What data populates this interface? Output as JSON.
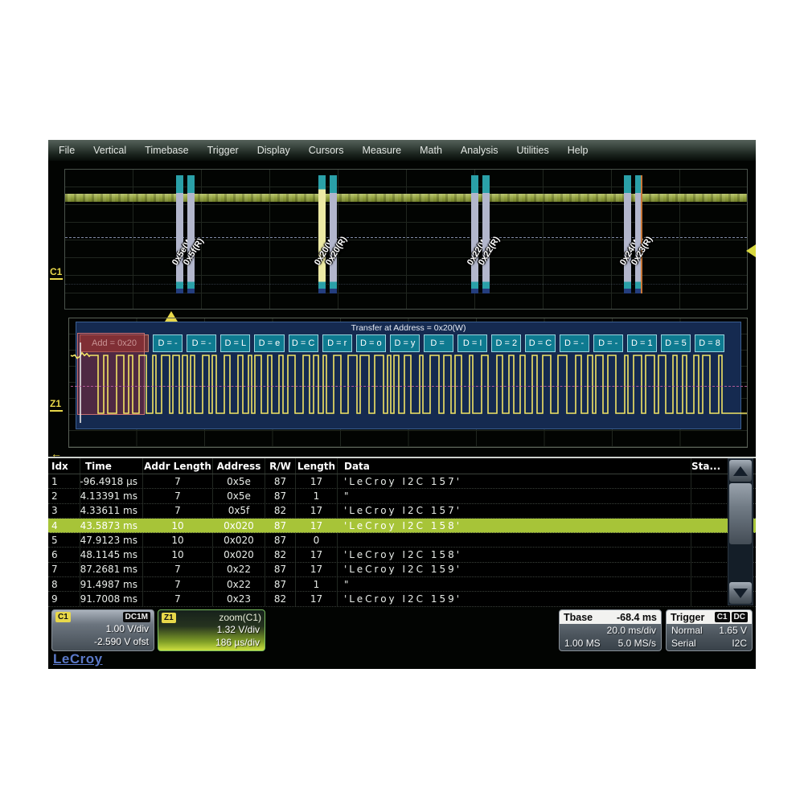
{
  "menu": {
    "items": [
      "File",
      "Vertical",
      "Timebase",
      "Trigger",
      "Display",
      "Cursors",
      "Measure",
      "Math",
      "Analysis",
      "Utilities",
      "Help"
    ]
  },
  "top_trace": {
    "channel_label": "C1",
    "bursts": [
      {
        "labels": [
          "0x5e(W)",
          "0x5f(R)"
        ]
      },
      {
        "labels": [
          "0x20(W)",
          "0x20(R)"
        ]
      },
      {
        "labels": [
          "0x22(W)",
          "0x22(R)"
        ]
      },
      {
        "labels": [
          "0x24(W)",
          "0x23(R)"
        ]
      }
    ]
  },
  "zoom_trace": {
    "channel_label": "Z1",
    "banner": "Transfer at Address = 0x20(W)",
    "address_box": "Add = 0x20",
    "data_prefix": "D = ",
    "data_values": [
      "-",
      "-",
      "L",
      "e",
      "C",
      "r",
      "o",
      "y",
      "",
      "I",
      "2",
      "C",
      "-",
      "-",
      "1",
      "5",
      "8"
    ]
  },
  "table": {
    "headers": {
      "idx": "Idx",
      "time": "Time",
      "addr_length": "Addr Length",
      "address": "Address",
      "rw": "R/W",
      "length": "Length",
      "data": "Data",
      "status": "Sta..."
    },
    "rows": [
      {
        "idx": "1",
        "time": "-96.4918 µs",
        "addr_length": "7",
        "address": "0x5e",
        "rw": "87",
        "length": "17",
        "data": "'LeCroy I2C 157'"
      },
      {
        "idx": "2",
        "time": "4.13391 ms",
        "addr_length": "7",
        "address": "0x5e",
        "rw": "87",
        "length": "1",
        "data": "\""
      },
      {
        "idx": "3",
        "time": "4.33611 ms",
        "addr_length": "7",
        "address": "0x5f",
        "rw": "82",
        "length": "17",
        "data": "'LeCroy I2C 157'"
      },
      {
        "idx": "4",
        "time": "43.5873 ms",
        "addr_length": "10",
        "address": "0x020",
        "rw": "87",
        "length": "17",
        "data": "'LeCroy I2C 158'"
      },
      {
        "idx": "5",
        "time": "47.9123 ms",
        "addr_length": "10",
        "address": "0x020",
        "rw": "87",
        "length": "0",
        "data": ""
      },
      {
        "idx": "6",
        "time": "48.1145 ms",
        "addr_length": "10",
        "address": "0x020",
        "rw": "82",
        "length": "17",
        "data": "'LeCroy I2C 158'"
      },
      {
        "idx": "7",
        "time": "87.2681 ms",
        "addr_length": "7",
        "address": "0x22",
        "rw": "87",
        "length": "17",
        "data": "'LeCroy I2C 159'"
      },
      {
        "idx": "8",
        "time": "91.4987 ms",
        "addr_length": "7",
        "address": "0x22",
        "rw": "87",
        "length": "1",
        "data": "\""
      },
      {
        "idx": "9",
        "time": "91.7008 ms",
        "addr_length": "7",
        "address": "0x23",
        "rw": "82",
        "length": "17",
        "data": "'LeCroy I2C 159'"
      }
    ],
    "selected_row": 4
  },
  "descriptors": {
    "c1": {
      "badge": "C1",
      "coupling": "DC1M",
      "line1": "1.00 V/div",
      "line2": "-2.590 V ofst"
    },
    "z1": {
      "badge": "Z1",
      "title": "zoom(C1)",
      "line1": "1.32 V/div",
      "line2": "186 µs/div"
    },
    "tbase": {
      "label": "Tbase",
      "value": "-68.4 ms",
      "line1": "20.0 ms/div",
      "line2a": "1.00 MS",
      "line2b": "5.0 MS/s"
    },
    "trigger": {
      "label": "Trigger",
      "badges": [
        "C1",
        "DC"
      ],
      "line1a": "Normal",
      "line1b": "1.65 V",
      "line2a": "Serial",
      "line2b": "I2C"
    }
  },
  "logo": "LeCroy",
  "colors": {
    "accent_yellow": "#e8d84a",
    "trace_green": "#96a542",
    "wave_yellow": "#f2e464",
    "decode_teal": "#0e7a90",
    "decode_red": "#6e3538",
    "highlight_green": "#a7c438"
  }
}
